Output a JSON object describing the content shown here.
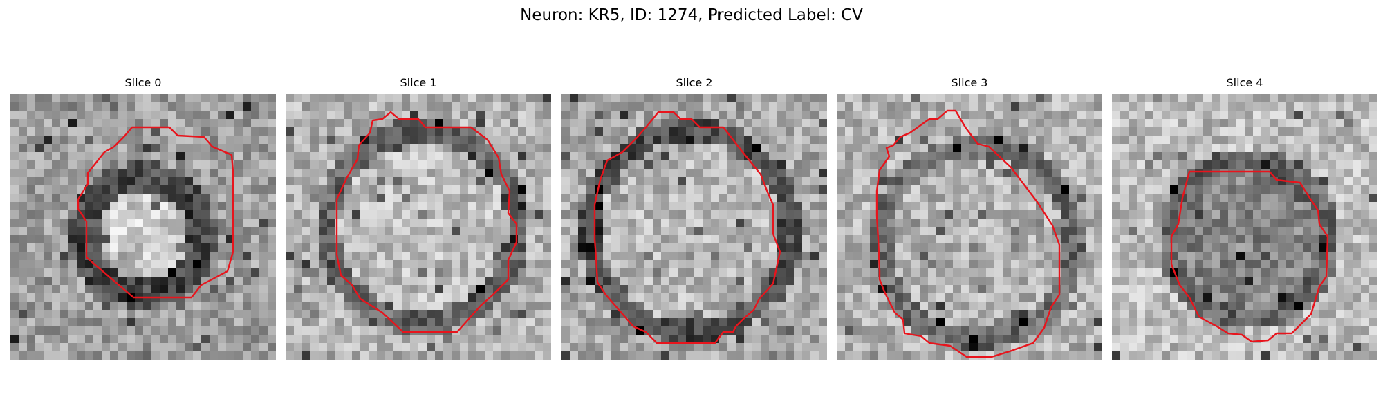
{
  "figure": {
    "title": "Neuron: KR5, ID: 1274, Predicted Label: CV"
  },
  "contour_color": "#e8141c",
  "colormap": "grayscale",
  "slices": [
    {
      "title": "Slice 0",
      "image_description": "grayscale micrograph tile, textured dark ring surrounding a bright centre"
    },
    {
      "title": "Slice 1",
      "image_description": "grayscale micrograph tile, large bright rounded region with dark edge on the left"
    },
    {
      "title": "Slice 2",
      "image_description": "grayscale micrograph tile, bright disc bounded by a dark ring"
    },
    {
      "title": "Slice 3",
      "image_description": "grayscale micrograph tile, bright disc with faint dark ring"
    },
    {
      "title": "Slice 4",
      "image_description": "grayscale micrograph tile, darker textured disc on a light background"
    }
  ]
}
